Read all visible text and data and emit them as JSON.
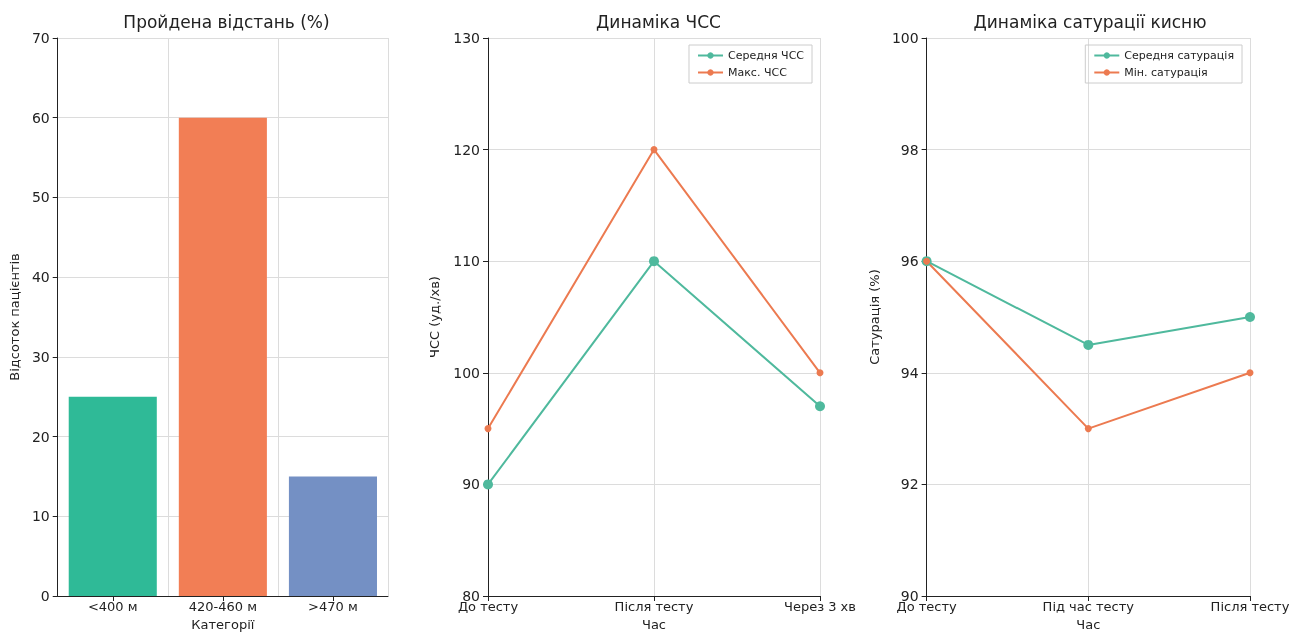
{
  "chart_data": [
    {
      "type": "bar",
      "title": "Пройдена відстань (%)",
      "xlabel": "Категорії",
      "ylabel": "Відсоток пацієнтів",
      "categories": [
        "<400 м",
        "420-460 м",
        ">470 м"
      ],
      "values": [
        25,
        60,
        15
      ],
      "colors": [
        "#2fba97",
        "#f27e55",
        "#7490c4"
      ],
      "ylim": [
        0,
        70
      ],
      "yticks": [
        0,
        10,
        20,
        30,
        40,
        50,
        60,
        70
      ],
      "grid": true
    },
    {
      "type": "line",
      "title": "Динаміка ЧСС",
      "xlabel": "Час",
      "ylabel": "ЧСС (уд./хв)",
      "categories": [
        "До тесту",
        "Після тесту",
        "Через 3 хв"
      ],
      "series": [
        {
          "name": "Середня ЧСС",
          "color": "#4fb99d",
          "values": [
            90,
            110,
            97
          ]
        },
        {
          "name": "Макс. ЧСС",
          "color": "#ec7a50",
          "values": [
            95,
            120,
            100
          ]
        }
      ],
      "ylim": [
        80,
        130
      ],
      "yticks": [
        80,
        90,
        100,
        110,
        120,
        130
      ],
      "grid": true,
      "legend": "top right",
      "marker": "circle"
    },
    {
      "type": "line",
      "title": "Динаміка сатурації кисню",
      "xlabel": "Час",
      "ylabel": "Сатурація (%)",
      "categories": [
        "До тесту",
        "Під час тесту",
        "Після тесту"
      ],
      "series": [
        {
          "name": "Середня сатурація",
          "color": "#4fb99d",
          "values": [
            96,
            94.5,
            95
          ]
        },
        {
          "name": "Мін. сатурація",
          "color": "#ec7a50",
          "values": [
            96,
            93,
            94
          ]
        }
      ],
      "ylim": [
        90,
        100
      ],
      "yticks": [
        90,
        92,
        94,
        96,
        98,
        100
      ],
      "grid": true,
      "legend": "top right",
      "marker": "circle"
    }
  ]
}
